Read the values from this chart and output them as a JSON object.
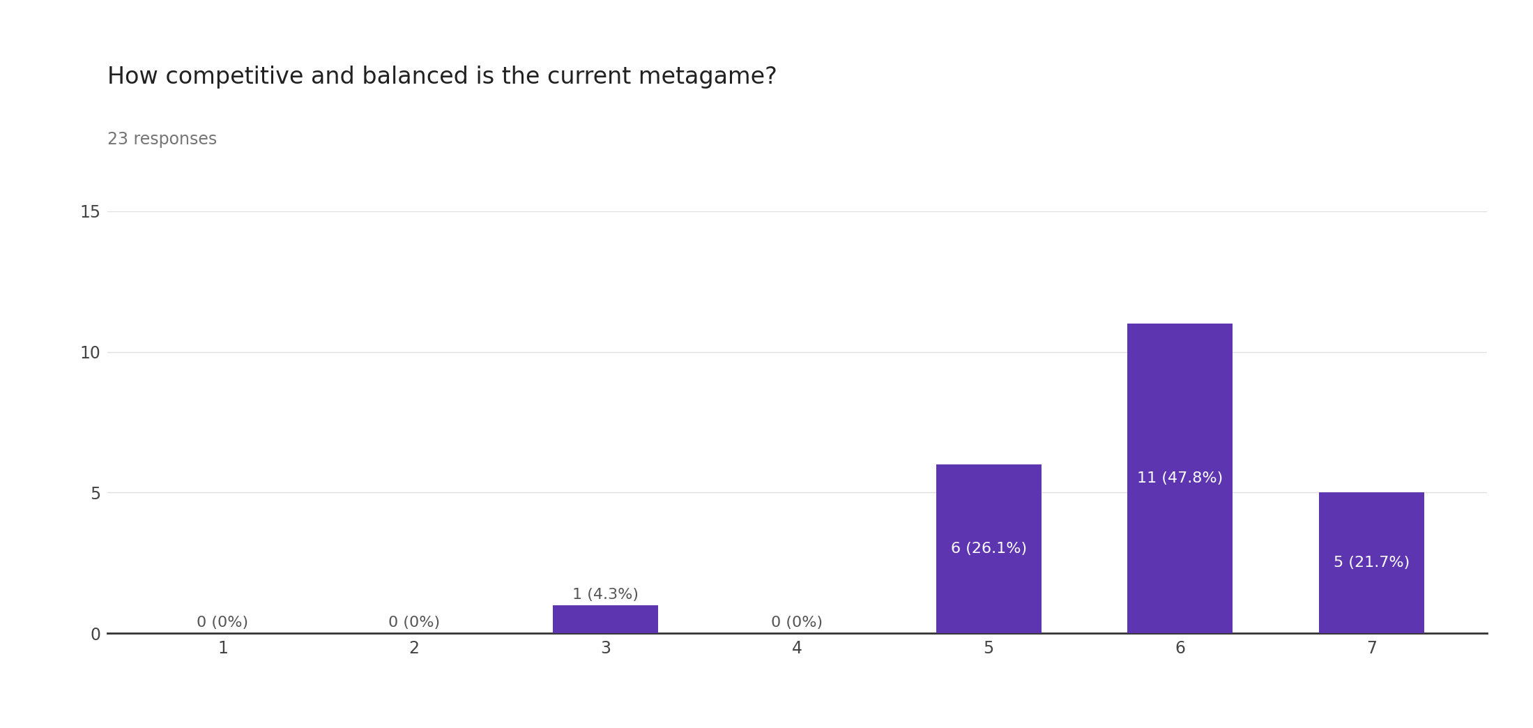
{
  "title": "How competitive and balanced is the current metagame?",
  "subtitle": "23 responses",
  "categories": [
    1,
    2,
    3,
    4,
    5,
    6,
    7
  ],
  "values": [
    0,
    0,
    1,
    0,
    6,
    11,
    5
  ],
  "percentages": [
    "0%",
    "0%",
    "4.3%",
    "0%",
    "26.1%",
    "47.8%",
    "21.7%"
  ],
  "bar_color": "#5e35b1",
  "background_color": "#ffffff",
  "ylim": [
    0,
    15
  ],
  "yticks": [
    0,
    5,
    10,
    15
  ],
  "title_fontsize": 24,
  "subtitle_fontsize": 17,
  "tick_fontsize": 17,
  "label_fontsize": 16,
  "bar_width": 0.55,
  "grid_color": "#e0e0e0",
  "text_color_inside": "#ffffff",
  "text_color_outside": "#555555"
}
